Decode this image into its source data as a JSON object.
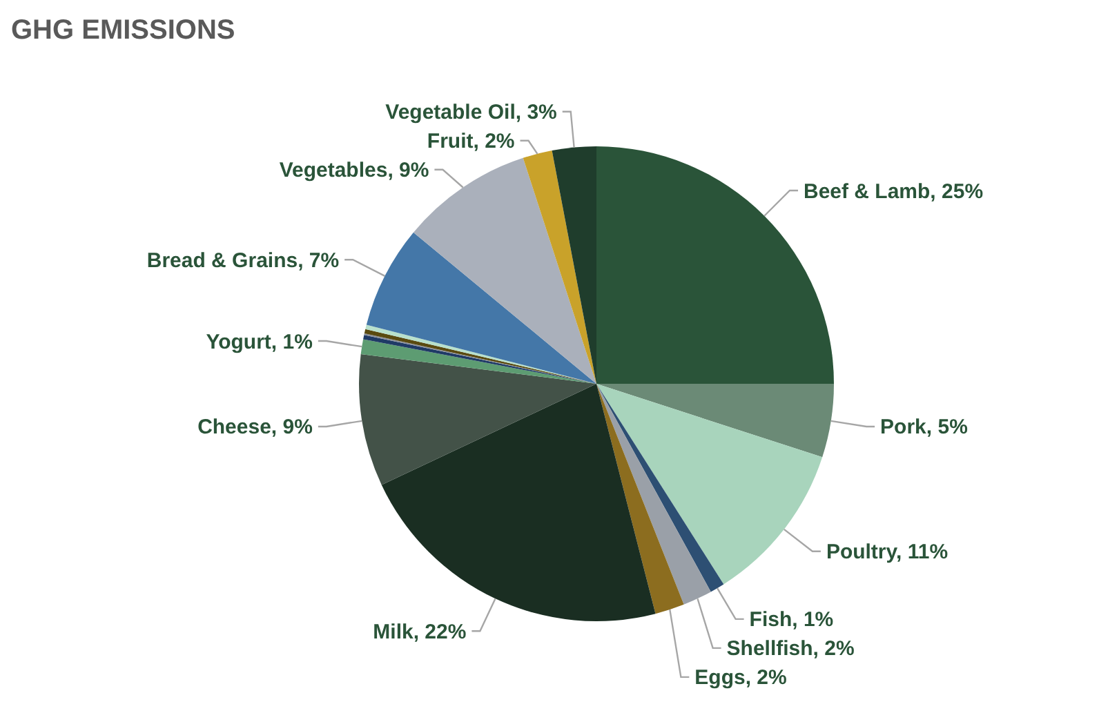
{
  "chart_data": {
    "type": "pie",
    "title": "GHG EMISSIONS",
    "categories": [
      "Beef & Lamb",
      "Pork",
      "Poultry",
      "Fish",
      "Shellfish",
      "Eggs",
      "Milk",
      "Cheese",
      "Yogurt",
      null,
      null,
      null,
      null,
      "Bread & Grains",
      "Vegetables",
      "Fruit",
      "Vegetable Oil"
    ],
    "values": [
      25,
      5,
      11,
      1,
      2,
      2,
      22,
      9,
      1,
      0.3,
      0.1,
      0.3,
      0.3,
      7,
      9,
      2,
      3
    ],
    "value_labels": [
      "25%",
      "5%",
      "11%",
      "1%",
      "2%",
      "2%",
      "22%",
      "9%",
      "1%",
      null,
      null,
      null,
      null,
      "7%",
      "9%",
      "2%",
      "3%"
    ],
    "colors": [
      "#2a5439",
      "#6b8a76",
      "#a8d4bc",
      "#2d4f73",
      "#9aa0a8",
      "#8c6d1f",
      "#1a2e22",
      "#435248",
      "#5d9c72",
      "#1f3a66",
      "#8a8f9a",
      "#5a4a10",
      "#b8e0cc",
      "#4477a8",
      "#aab0bb",
      "#c9a22a",
      "#1f3d2c"
    ]
  }
}
